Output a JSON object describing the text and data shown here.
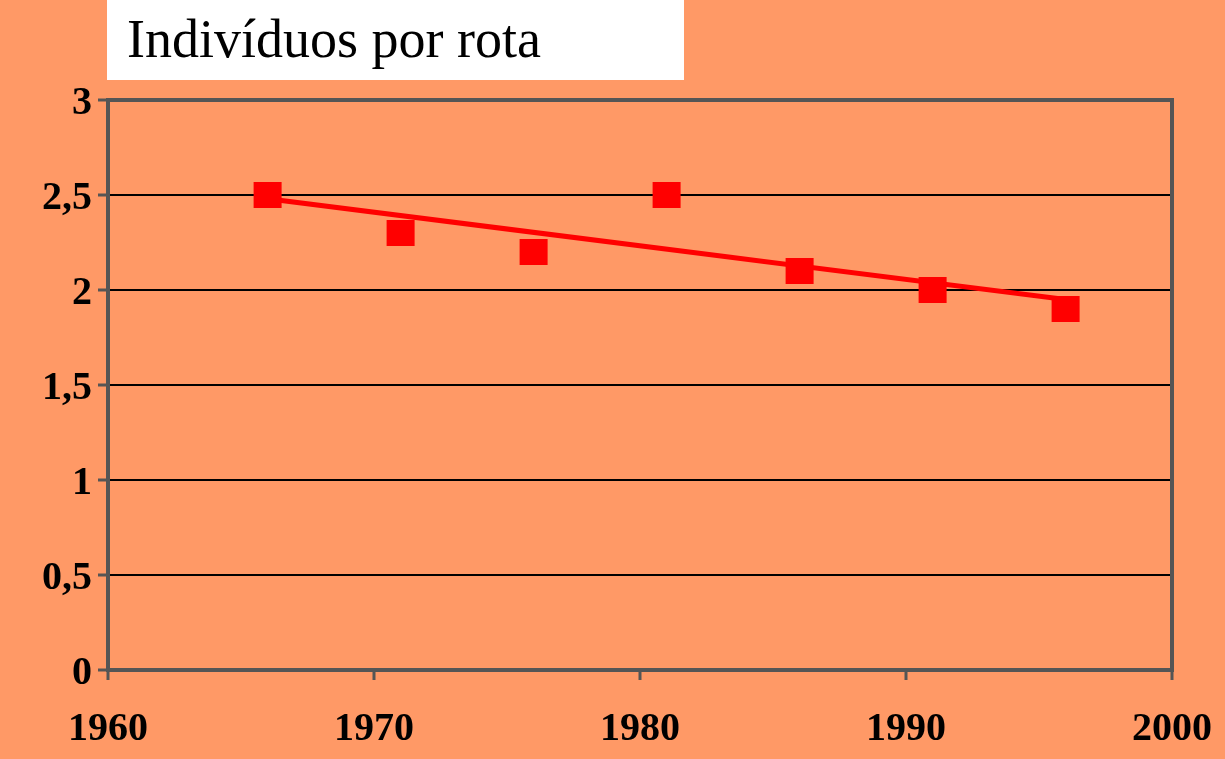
{
  "chart_data": {
    "type": "scatter",
    "title": "Indivíduos por rota",
    "series": [
      {
        "color": "#ff0000",
        "marker": "square",
        "x": [
          1966,
          1971,
          1976,
          1981,
          1986,
          1991,
          1996
        ],
        "values": [
          2.5,
          2.3,
          2.2,
          2.5,
          2.1,
          2.0,
          1.9
        ]
      },
      {
        "type": "line",
        "color": "#ff0000",
        "marker": "none",
        "x": [
          1966,
          1996
        ],
        "values": [
          2.48,
          1.95
        ]
      }
    ],
    "xlim": [
      1960,
      2000
    ],
    "xticks": [
      1960,
      1970,
      1980,
      1990,
      2000
    ],
    "ylim": [
      0,
      3
    ],
    "yticks": [
      {
        "value": 0,
        "label": "0"
      },
      {
        "value": 0.5,
        "label": "0,5"
      },
      {
        "value": 1,
        "label": "1"
      },
      {
        "value": 1.5,
        "label": "1,5"
      },
      {
        "value": 2,
        "label": "2"
      },
      {
        "value": 2.5,
        "label": "2,5"
      },
      {
        "value": 3,
        "label": "3"
      }
    ],
    "grid": "y"
  }
}
